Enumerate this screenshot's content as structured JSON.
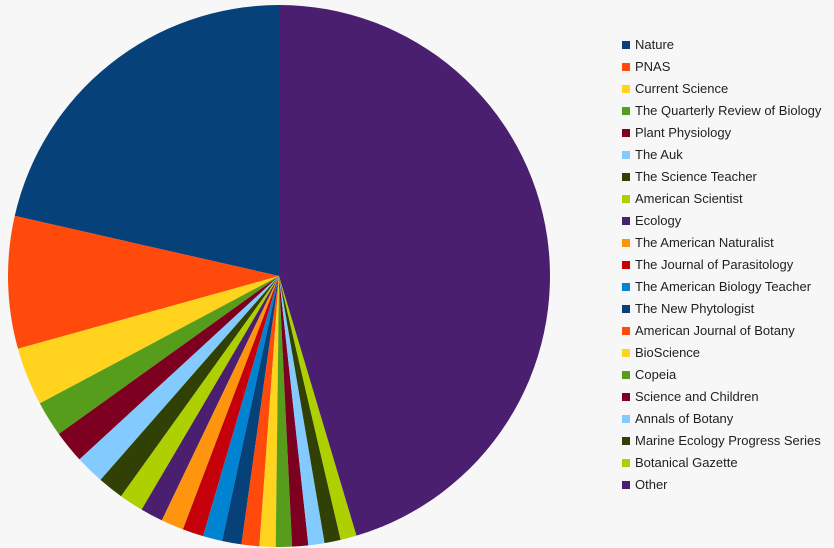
{
  "chart_data": {
    "type": "pie",
    "title": "",
    "legend_position": "right",
    "slices": [
      {
        "label": "Nature",
        "value": 22.3,
        "color": "#06417a"
      },
      {
        "label": "PNAS",
        "value": 8.2,
        "color": "#ff4a0c"
      },
      {
        "label": "Current Science",
        "value": 3.6,
        "color": "#ffd31e"
      },
      {
        "label": "The Quarterly Review of Biology",
        "value": 2.2,
        "color": "#579d1c"
      },
      {
        "label": "Plant Physiology",
        "value": 2.0,
        "color": "#7e0021"
      },
      {
        "label": "The Auk",
        "value": 1.8,
        "color": "#83caff"
      },
      {
        "label": "The Science Teacher",
        "value": 1.6,
        "color": "#314004"
      },
      {
        "label": "American Scientist",
        "value": 1.5,
        "color": "#aecf00"
      },
      {
        "label": "Ecology",
        "value": 1.4,
        "color": "#4b1f6f"
      },
      {
        "label": "The American Naturalist",
        "value": 1.4,
        "color": "#ff950e"
      },
      {
        "label": "The Journal of Parasitology",
        "value": 1.3,
        "color": "#c5000b"
      },
      {
        "label": "The American Biology Teacher",
        "value": 1.2,
        "color": "#0084d1"
      },
      {
        "label": "The New Phytologist",
        "value": 1.2,
        "color": "#06417a"
      },
      {
        "label": "American Journal of Botany",
        "value": 1.1,
        "color": "#ff4a0c"
      },
      {
        "label": "BioScience",
        "value": 1.0,
        "color": "#ffd31e"
      },
      {
        "label": "Copeia",
        "value": 1.0,
        "color": "#579d1c"
      },
      {
        "label": "Science and Children",
        "value": 1.0,
        "color": "#7e0021"
      },
      {
        "label": "Annals of Botany",
        "value": 1.0,
        "color": "#83caff"
      },
      {
        "label": "Marine Ecology Progress Series",
        "value": 1.0,
        "color": "#314004"
      },
      {
        "label": "Botanical Gazette",
        "value": 1.0,
        "color": "#aecf00"
      },
      {
        "label": "Other",
        "value": 47.2,
        "color": "#4b1f6f"
      }
    ]
  }
}
